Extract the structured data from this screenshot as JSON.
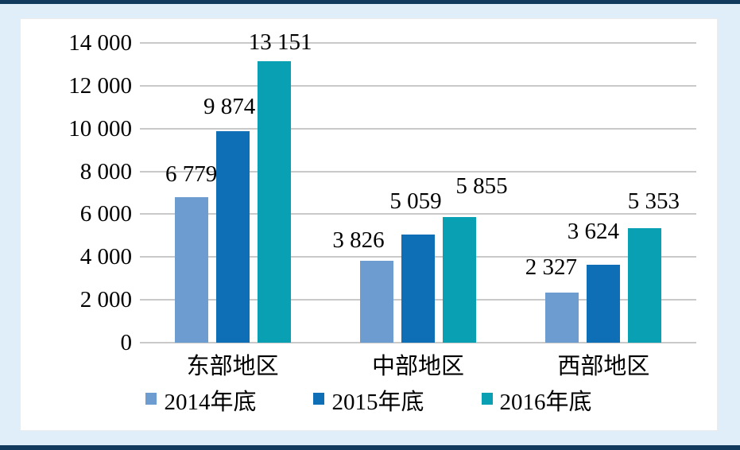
{
  "palette": {
    "frame_border": "#123A5E",
    "page_background": "#DFEEF9",
    "panel_background": "#FFFFFF",
    "gridline": "#C9C9C9",
    "text": "#000000"
  },
  "chart_data": {
    "type": "bar",
    "title": "",
    "xlabel": "",
    "ylabel": "",
    "categories": [
      "东部地区",
      "中部地区",
      "西部地区"
    ],
    "series": [
      {
        "name": "2014年底",
        "color": "#6C9CD0",
        "values": [
          6779,
          3826,
          2327
        ],
        "labels": [
          "6 779",
          "3 826",
          "2 327"
        ],
        "label_dx": [
          0,
          -23,
          -14
        ],
        "label_dy": [
          14,
          11,
          17
        ]
      },
      {
        "name": "2015年底",
        "color": "#0F6FB6",
        "values": [
          9874,
          5059,
          3624
        ],
        "labels": [
          "9 874",
          "5 059",
          "3 624"
        ],
        "label_dx": [
          -4,
          -3,
          -13
        ],
        "label_dy": [
          16,
          27,
          27
        ]
      },
      {
        "name": "2016年底",
        "color": "#0AA0B4",
        "values": [
          13151,
          5855,
          5353
        ],
        "labels": [
          "13 151",
          "5 855",
          "5 353"
        ],
        "label_dx": [
          8,
          28,
          11
        ],
        "label_dy": [
          9,
          24,
          19
        ]
      }
    ],
    "ylim": [
      0,
      14000
    ],
    "ytick_labels": [
      "0",
      "2 000",
      "4 000",
      "6 000",
      "8 000",
      "10 000",
      "12 000",
      "14 000"
    ],
    "grid": true,
    "legend_position": "bottom"
  }
}
